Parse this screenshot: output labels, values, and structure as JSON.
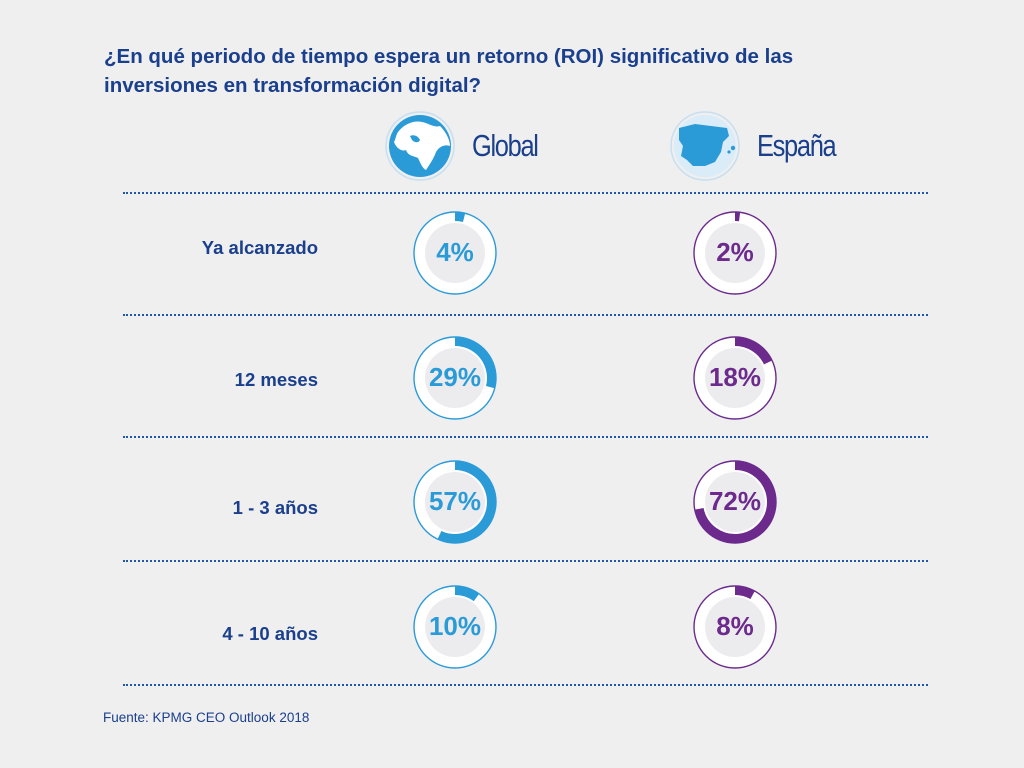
{
  "title": "¿En qué periodo de tiempo espera un retorno (ROI) significativo de las  inversiones en transformación digital?",
  "source": "Fuente: KPMG CEO Outlook 2018",
  "colors": {
    "global": "#2b9bd8",
    "spain": "#6b2a8c",
    "text": "#1a3f8c"
  },
  "chart_data": {
    "type": "donut",
    "title": "¿En qué periodo de tiempo espera un retorno (ROI) significativo de las  inversiones en transformación digital?",
    "unit": "%",
    "categories": [
      "Ya alcanzado",
      "12 meses",
      "1 - 3 años",
      "4 - 10 años"
    ],
    "series": [
      {
        "name": "Global",
        "icon": "globe-icon",
        "values": [
          4,
          29,
          57,
          10
        ],
        "labels": [
          "4%",
          "29%",
          "57%",
          "10%"
        ]
      },
      {
        "name": "España",
        "icon": "spain-map-icon",
        "values": [
          2,
          18,
          72,
          8
        ],
        "labels": [
          "2%",
          "18%",
          "72%",
          "8%"
        ]
      }
    ]
  }
}
